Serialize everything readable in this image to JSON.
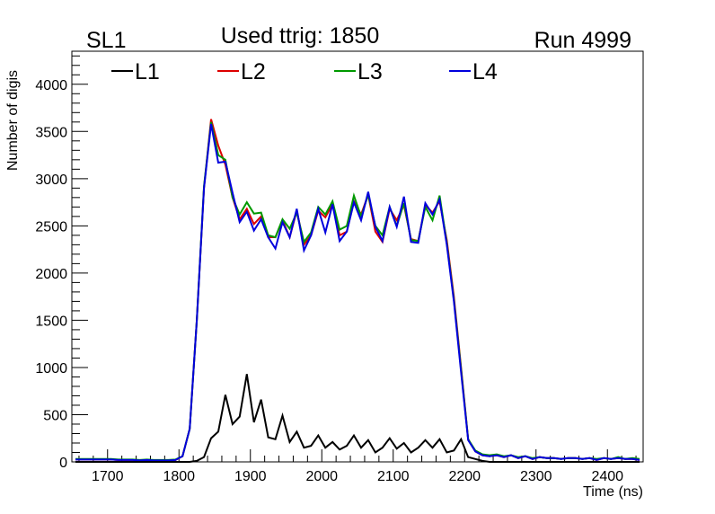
{
  "header": {
    "left": "SL1",
    "title": "Used ttrig: 1850",
    "right": "Run 4999"
  },
  "chart_data": {
    "type": "line",
    "title": "Used ttrig: 1850",
    "xlabel": "Time (ns)",
    "ylabel": "Number of digis",
    "xlim": [
      1650,
      2450
    ],
    "ylim": [
      0,
      4350
    ],
    "xticks": [
      1700,
      1800,
      1900,
      2000,
      2100,
      2200,
      2300,
      2400
    ],
    "yticks": [
      0,
      500,
      1000,
      1500,
      2000,
      2500,
      3000,
      3500,
      4000
    ],
    "legend_position": "top",
    "x_start": 1650,
    "x_step": 10,
    "series": [
      {
        "name": "L1",
        "color": "#000000",
        "values": [
          0,
          0,
          0,
          0,
          0,
          0,
          0,
          0,
          0,
          0,
          0,
          0,
          0,
          0,
          0,
          0,
          0,
          10,
          50,
          250,
          320,
          710,
          400,
          480,
          930,
          420,
          660,
          260,
          240,
          490,
          210,
          320,
          150,
          170,
          280,
          150,
          210,
          130,
          170,
          280,
          150,
          230,
          100,
          150,
          250,
          140,
          200,
          100,
          150,
          230,
          150,
          240,
          100,
          120,
          240,
          50,
          30,
          10,
          0,
          0,
          0,
          0,
          0,
          0,
          0,
          0,
          0,
          0,
          0,
          0,
          0,
          0,
          0,
          0,
          0,
          0,
          0,
          0,
          0,
          0
        ]
      },
      {
        "name": "L2",
        "color": "#dd0000",
        "values": [
          25,
          25,
          25,
          25,
          25,
          25,
          20,
          20,
          20,
          15,
          20,
          15,
          15,
          15,
          20,
          60,
          350,
          1500,
          2900,
          3630,
          3350,
          3150,
          2800,
          2570,
          2680,
          2520,
          2600,
          2380,
          2380,
          2560,
          2380,
          2660,
          2300,
          2400,
          2660,
          2590,
          2730,
          2400,
          2440,
          2760,
          2620,
          2830,
          2440,
          2330,
          2680,
          2560,
          2720,
          2360,
          2340,
          2720,
          2640,
          2760,
          2350,
          1750,
          1000,
          240,
          110,
          70,
          60,
          70,
          50,
          70,
          40,
          60,
          30,
          50,
          40,
          40,
          30,
          40,
          40,
          30,
          40,
          20,
          40,
          30,
          40,
          30,
          30,
          20
        ]
      },
      {
        "name": "L3",
        "color": "#009900",
        "values": [
          30,
          30,
          30,
          30,
          30,
          30,
          25,
          25,
          25,
          20,
          25,
          20,
          20,
          20,
          25,
          60,
          350,
          1500,
          2920,
          3600,
          3250,
          3200,
          2800,
          2620,
          2750,
          2630,
          2640,
          2400,
          2380,
          2570,
          2470,
          2640,
          2330,
          2430,
          2700,
          2620,
          2760,
          2460,
          2500,
          2820,
          2600,
          2830,
          2500,
          2400,
          2700,
          2500,
          2740,
          2350,
          2340,
          2700,
          2560,
          2820,
          2320,
          1720,
          980,
          240,
          120,
          80,
          70,
          80,
          60,
          70,
          50,
          60,
          40,
          50,
          40,
          40,
          30,
          40,
          40,
          30,
          40,
          30,
          40,
          30,
          50,
          30,
          40,
          30
        ]
      },
      {
        "name": "L4",
        "color": "#0000dd",
        "values": [
          25,
          25,
          25,
          25,
          25,
          25,
          20,
          20,
          20,
          15,
          20,
          15,
          15,
          15,
          20,
          60,
          350,
          1500,
          2900,
          3580,
          3170,
          3180,
          2850,
          2540,
          2650,
          2450,
          2570,
          2380,
          2260,
          2540,
          2380,
          2680,
          2240,
          2400,
          2680,
          2430,
          2730,
          2340,
          2440,
          2750,
          2560,
          2860,
          2490,
          2340,
          2700,
          2490,
          2810,
          2330,
          2320,
          2740,
          2620,
          2780,
          2300,
          1700,
          950,
          230,
          110,
          70,
          60,
          70,
          50,
          70,
          40,
          60,
          30,
          50,
          40,
          40,
          30,
          40,
          40,
          30,
          40,
          20,
          40,
          30,
          40,
          30,
          30,
          20
        ]
      }
    ]
  }
}
